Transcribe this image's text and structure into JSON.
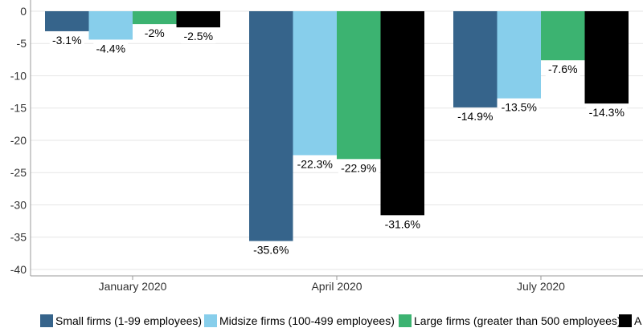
{
  "chart_data": {
    "type": "bar",
    "categories": [
      "January 2020",
      "April 2020",
      "July 2020"
    ],
    "series": [
      {
        "name": "Small firms (1-99 employees)",
        "color": "#36648b",
        "values": [
          -3.1,
          -35.6,
          -14.9
        ],
        "labels": [
          "-3.1%",
          "-35.6%",
          "-14.9%"
        ]
      },
      {
        "name": "Midsize firms (100-499 employees)",
        "color": "#87ceeb",
        "values": [
          -4.4,
          -22.3,
          -13.5
        ],
        "labels": [
          "-4.4%",
          "-22.3%",
          "-13.5%"
        ]
      },
      {
        "name": "Large firms (greater than 500 employees)",
        "color": "#3cb371",
        "values": [
          -2,
          -22.9,
          -7.6
        ],
        "labels": [
          "-2%",
          "-22.9%",
          "-7.6%"
        ]
      },
      {
        "name": "A",
        "color": "#000000",
        "values": [
          -2.5,
          -31.6,
          -14.3
        ],
        "labels": [
          "-2.5%",
          "-31.6%",
          "-14.3%"
        ]
      }
    ],
    "ylim": [
      -41,
      0
    ],
    "yticks": [
      0,
      -5,
      -10,
      -15,
      -20,
      -25,
      -30,
      -35,
      -40
    ],
    "ytick_labels": [
      "0",
      "-5",
      "-10",
      "-15",
      "-20",
      "-25",
      "-30",
      "-35",
      "-40"
    ],
    "grid": true,
    "legend_position": "bottom",
    "title": "",
    "xlabel": "",
    "ylabel": ""
  }
}
